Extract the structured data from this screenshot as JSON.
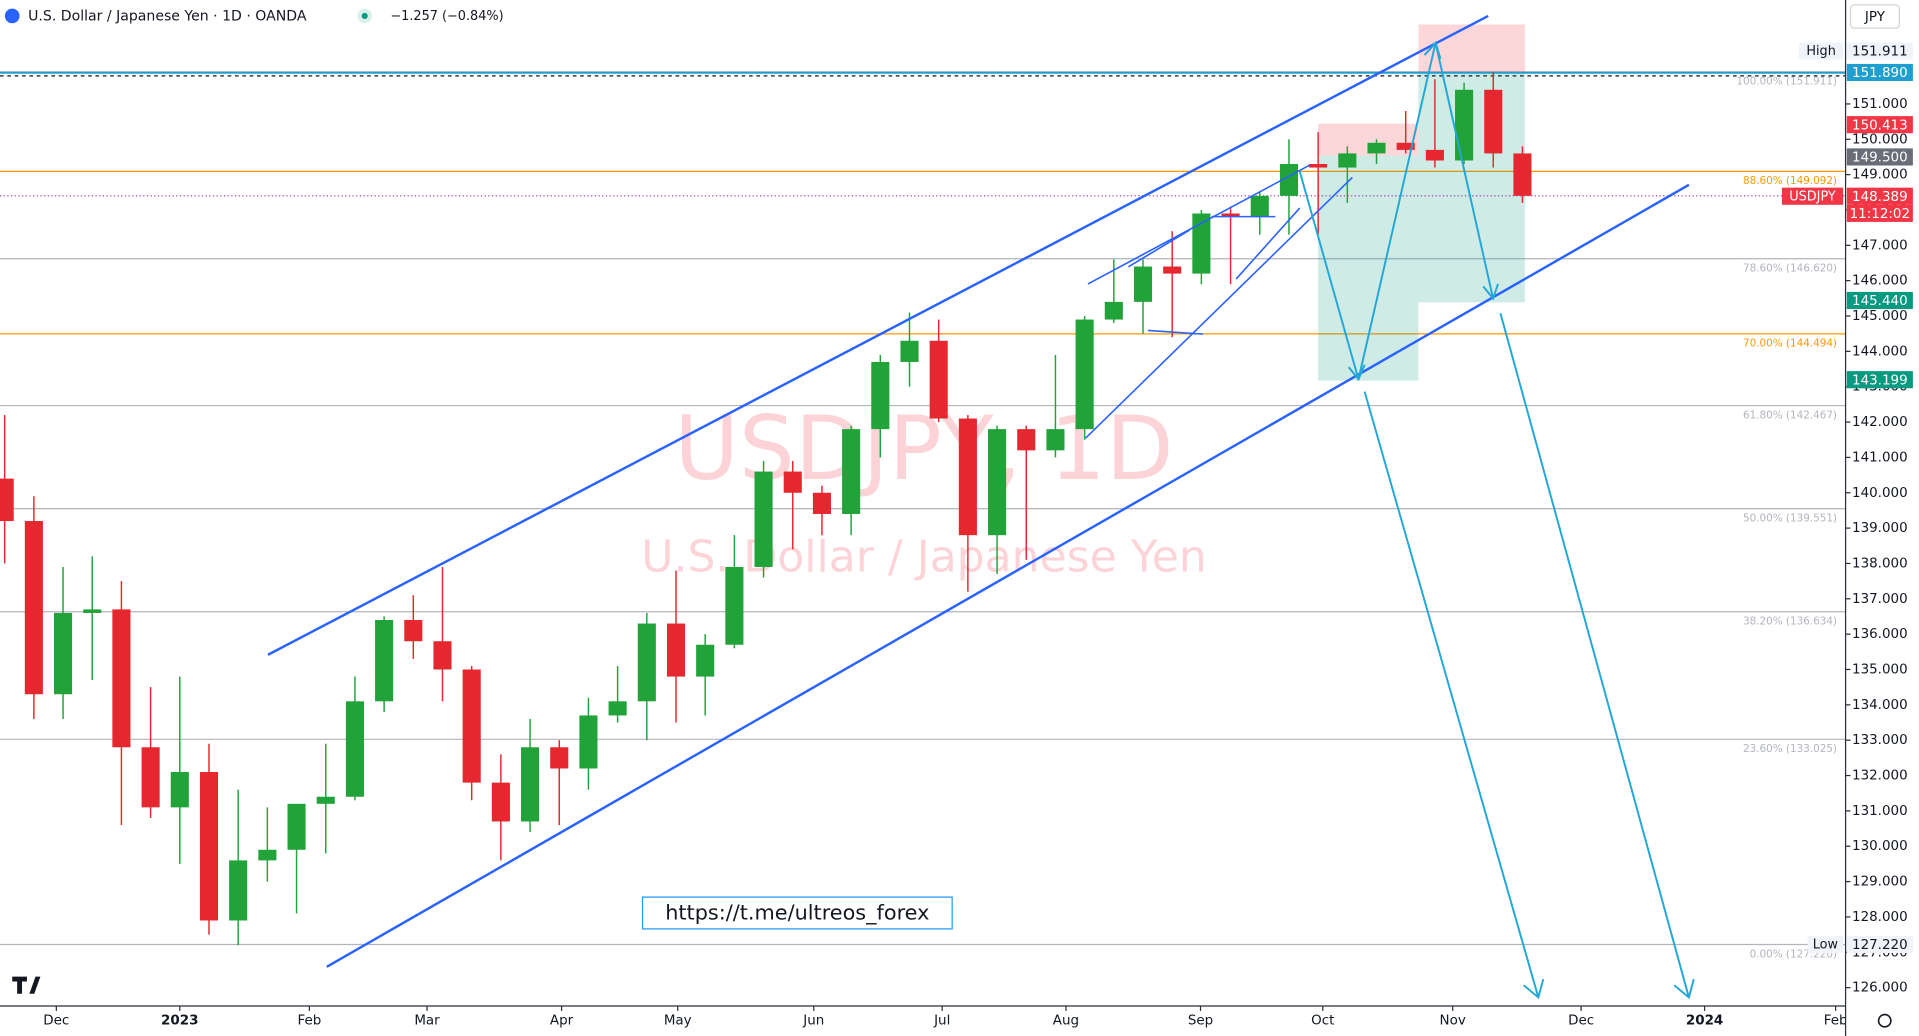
{
  "chart_data": {
    "type": "candlestick",
    "title": "U.S. Dollar / Japanese Yen · 1D · OANDA",
    "change": "−1.257 (−0.84%)",
    "currency": "JPY",
    "watermark": "USDJPY, 1D",
    "watermark_subtitle": "U.S. Dollar / Japanese Yen",
    "link": "https://t.me/ultreos_forex",
    "up_color": "#22a33a",
    "down_color": "#e5282f",
    "x": [
      -6,
      -5,
      -4,
      -3,
      -2,
      -1,
      0,
      1,
      2,
      3,
      4,
      5,
      6,
      7,
      8,
      9,
      10,
      11,
      12,
      13,
      14,
      15,
      16,
      17,
      18,
      19,
      20,
      21,
      22,
      23,
      24,
      25,
      26,
      27,
      28,
      29,
      30,
      31,
      32,
      33,
      34,
      35,
      36,
      37,
      38,
      39,
      40,
      41,
      42,
      43,
      44,
      45,
      46
    ],
    "open": [
      140.4,
      139.2,
      134.3,
      136.6,
      136.7,
      132.8,
      131.1,
      132.1,
      127.9,
      129.6,
      129.9,
      131.2,
      131.4,
      134.1,
      136.4,
      135.8,
      135.0,
      131.8,
      130.7,
      132.8,
      132.2,
      133.7,
      134.1,
      136.3,
      134.8,
      135.7,
      137.9,
      140.6,
      140.0,
      139.4,
      141.8,
      143.7,
      144.3,
      142.1,
      138.8,
      141.8,
      141.2,
      141.8,
      144.9,
      145.4,
      146.4,
      146.2,
      147.9,
      147.8,
      148.4,
      149.3,
      149.2,
      149.6,
      149.9,
      149.7,
      149.4,
      151.4,
      149.6
    ],
    "high": [
      142.2,
      139.9,
      137.9,
      138.2,
      137.5,
      134.5,
      134.8,
      132.9,
      131.6,
      131.1,
      131.2,
      132.9,
      134.8,
      136.5,
      137.1,
      137.9,
      135.1,
      132.6,
      133.6,
      133.0,
      134.2,
      135.1,
      136.6,
      137.8,
      136.0,
      138.8,
      140.9,
      140.9,
      140.2,
      141.9,
      143.9,
      145.1,
      144.9,
      142.2,
      141.9,
      141.9,
      143.9,
      145.0,
      146.6,
      146.6,
      147.4,
      148.0,
      148.1,
      148.5,
      150.0,
      150.2,
      149.8,
      150.0,
      150.8,
      151.7,
      151.6,
      151.9,
      149.8
    ],
    "low": [
      138.0,
      133.6,
      133.6,
      134.7,
      130.6,
      130.8,
      129.5,
      127.5,
      127.2,
      129.0,
      128.1,
      129.8,
      131.3,
      133.8,
      135.3,
      134.1,
      131.3,
      129.6,
      130.4,
      130.6,
      131.6,
      133.5,
      133.0,
      133.5,
      133.7,
      135.6,
      137.6,
      138.4,
      138.8,
      138.8,
      141.0,
      143.0,
      142.0,
      137.2,
      137.7,
      138.1,
      141.0,
      141.5,
      144.8,
      144.5,
      144.4,
      145.9,
      145.9,
      147.3,
      147.3,
      147.3,
      148.2,
      149.3,
      149.6,
      149.2,
      149.3,
      149.2,
      148.2
    ],
    "close": [
      139.2,
      134.3,
      136.6,
      136.7,
      132.8,
      131.1,
      132.1,
      127.9,
      129.6,
      129.9,
      131.2,
      131.4,
      134.1,
      136.4,
      135.8,
      135.0,
      131.8,
      130.7,
      132.8,
      132.2,
      133.7,
      134.1,
      136.3,
      134.8,
      135.7,
      137.9,
      140.6,
      140.0,
      139.4,
      141.8,
      143.7,
      144.3,
      142.1,
      138.8,
      141.8,
      141.2,
      141.8,
      144.9,
      145.4,
      146.4,
      146.2,
      147.9,
      147.8,
      148.4,
      149.3,
      149.2,
      149.6,
      149.9,
      149.7,
      149.4,
      151.4,
      149.6,
      148.4
    ],
    "xlim": [
      -6.16,
      57.07
    ],
    "xticks": [
      {
        "value": -4.23,
        "label": "Dec"
      },
      {
        "value": 0,
        "label": "2023"
      },
      {
        "value": 4.44,
        "label": "Feb"
      },
      {
        "value": 8.47,
        "label": "Mar"
      },
      {
        "value": 13.08,
        "label": "Apr"
      },
      {
        "value": 17.06,
        "label": "May"
      },
      {
        "value": 21.72,
        "label": "Jun"
      },
      {
        "value": 26.12,
        "label": "Jul"
      },
      {
        "value": 30.36,
        "label": "Aug"
      },
      {
        "value": 34.97,
        "label": "Sep"
      },
      {
        "value": 39.16,
        "label": "Oct"
      },
      {
        "value": 43.61,
        "label": "Nov"
      },
      {
        "value": 48.01,
        "label": "Dec"
      },
      {
        "value": 52.24,
        "label": "2024"
      },
      {
        "value": 56.73,
        "label": "Feb"
      }
    ],
    "ylim": [
      125.48,
      153.94
    ],
    "yticks": [
      {
        "value": 126,
        "label": "126.000"
      },
      {
        "value": 127,
        "label": "127.000"
      },
      {
        "value": 128,
        "label": "128.000"
      },
      {
        "value": 129,
        "label": "129.000"
      },
      {
        "value": 130,
        "label": "130.000"
      },
      {
        "value": 131,
        "label": "131.000"
      },
      {
        "value": 132,
        "label": "132.000"
      },
      {
        "value": 133,
        "label": "133.000"
      },
      {
        "value": 134,
        "label": "134.000"
      },
      {
        "value": 135,
        "label": "135.000"
      },
      {
        "value": 136,
        "label": "136.000"
      },
      {
        "value": 137,
        "label": "137.000"
      },
      {
        "value": 138,
        "label": "138.000"
      },
      {
        "value": 139,
        "label": "139.000"
      },
      {
        "value": 140,
        "label": "140.000"
      },
      {
        "value": 141,
        "label": "141.000"
      },
      {
        "value": 142,
        "label": "142.000"
      },
      {
        "value": 143,
        "label": "143.000"
      },
      {
        "value": 144,
        "label": "144.000"
      },
      {
        "value": 145,
        "label": "145.000"
      },
      {
        "value": 146,
        "label": "146.000"
      },
      {
        "value": 147,
        "label": "147.000"
      },
      {
        "value": 148,
        "label": "148.000"
      },
      {
        "value": 149,
        "label": "149.000"
      },
      {
        "value": 150,
        "label": "150.000"
      },
      {
        "value": 151,
        "label": "151.000"
      }
    ],
    "fib_levels": [
      {
        "label": "100.00% (151.911)",
        "value": 151.911,
        "color": "#b2b5be"
      },
      {
        "label": "88.60% (149.092)",
        "value": 149.092,
        "color": "#ff9800"
      },
      {
        "label": "78.60% (146.620)",
        "value": 146.62,
        "color": "#b2b5be"
      },
      {
        "label": "70.00% (144.494)",
        "value": 144.494,
        "color": "#ff9800"
      },
      {
        "label": "61.80% (142.467)",
        "value": 142.467,
        "color": "#b2b5be"
      },
      {
        "label": "50.00% (139.551)",
        "value": 139.551,
        "color": "#b2b5be"
      },
      {
        "label": "38.20% (136.634)",
        "value": 136.634,
        "color": "#b2b5be"
      },
      {
        "label": "23.60% (133.025)",
        "value": 133.025,
        "color": "#b2b5be"
      },
      {
        "label": "0.00% (127.220)",
        "value": 127.22,
        "color": "#b2b5be"
      }
    ],
    "price_labels": [
      {
        "tag": "High",
        "label": "151.911",
        "value": 151.911,
        "color": "#f0f3fa"
      },
      {
        "label": "151.890",
        "value": 151.89,
        "color": "#1e9fd0"
      },
      {
        "label": "150.413",
        "value": 150.413,
        "color": "#f23645"
      },
      {
        "label": "149.500",
        "value": 149.5,
        "color": "#6a6d78"
      },
      {
        "tag": "USDJPY",
        "label": "148.389",
        "value": 148.389,
        "sub": "11:12:02",
        "color": "#f23645"
      },
      {
        "label": "145.440",
        "value": 145.44,
        "color": "#089981"
      },
      {
        "label": "143.199",
        "value": 143.199,
        "color": "#089981"
      },
      {
        "tag": "Low",
        "label": "127.220",
        "value": 127.22,
        "color": "#f0f3fa"
      }
    ]
  }
}
